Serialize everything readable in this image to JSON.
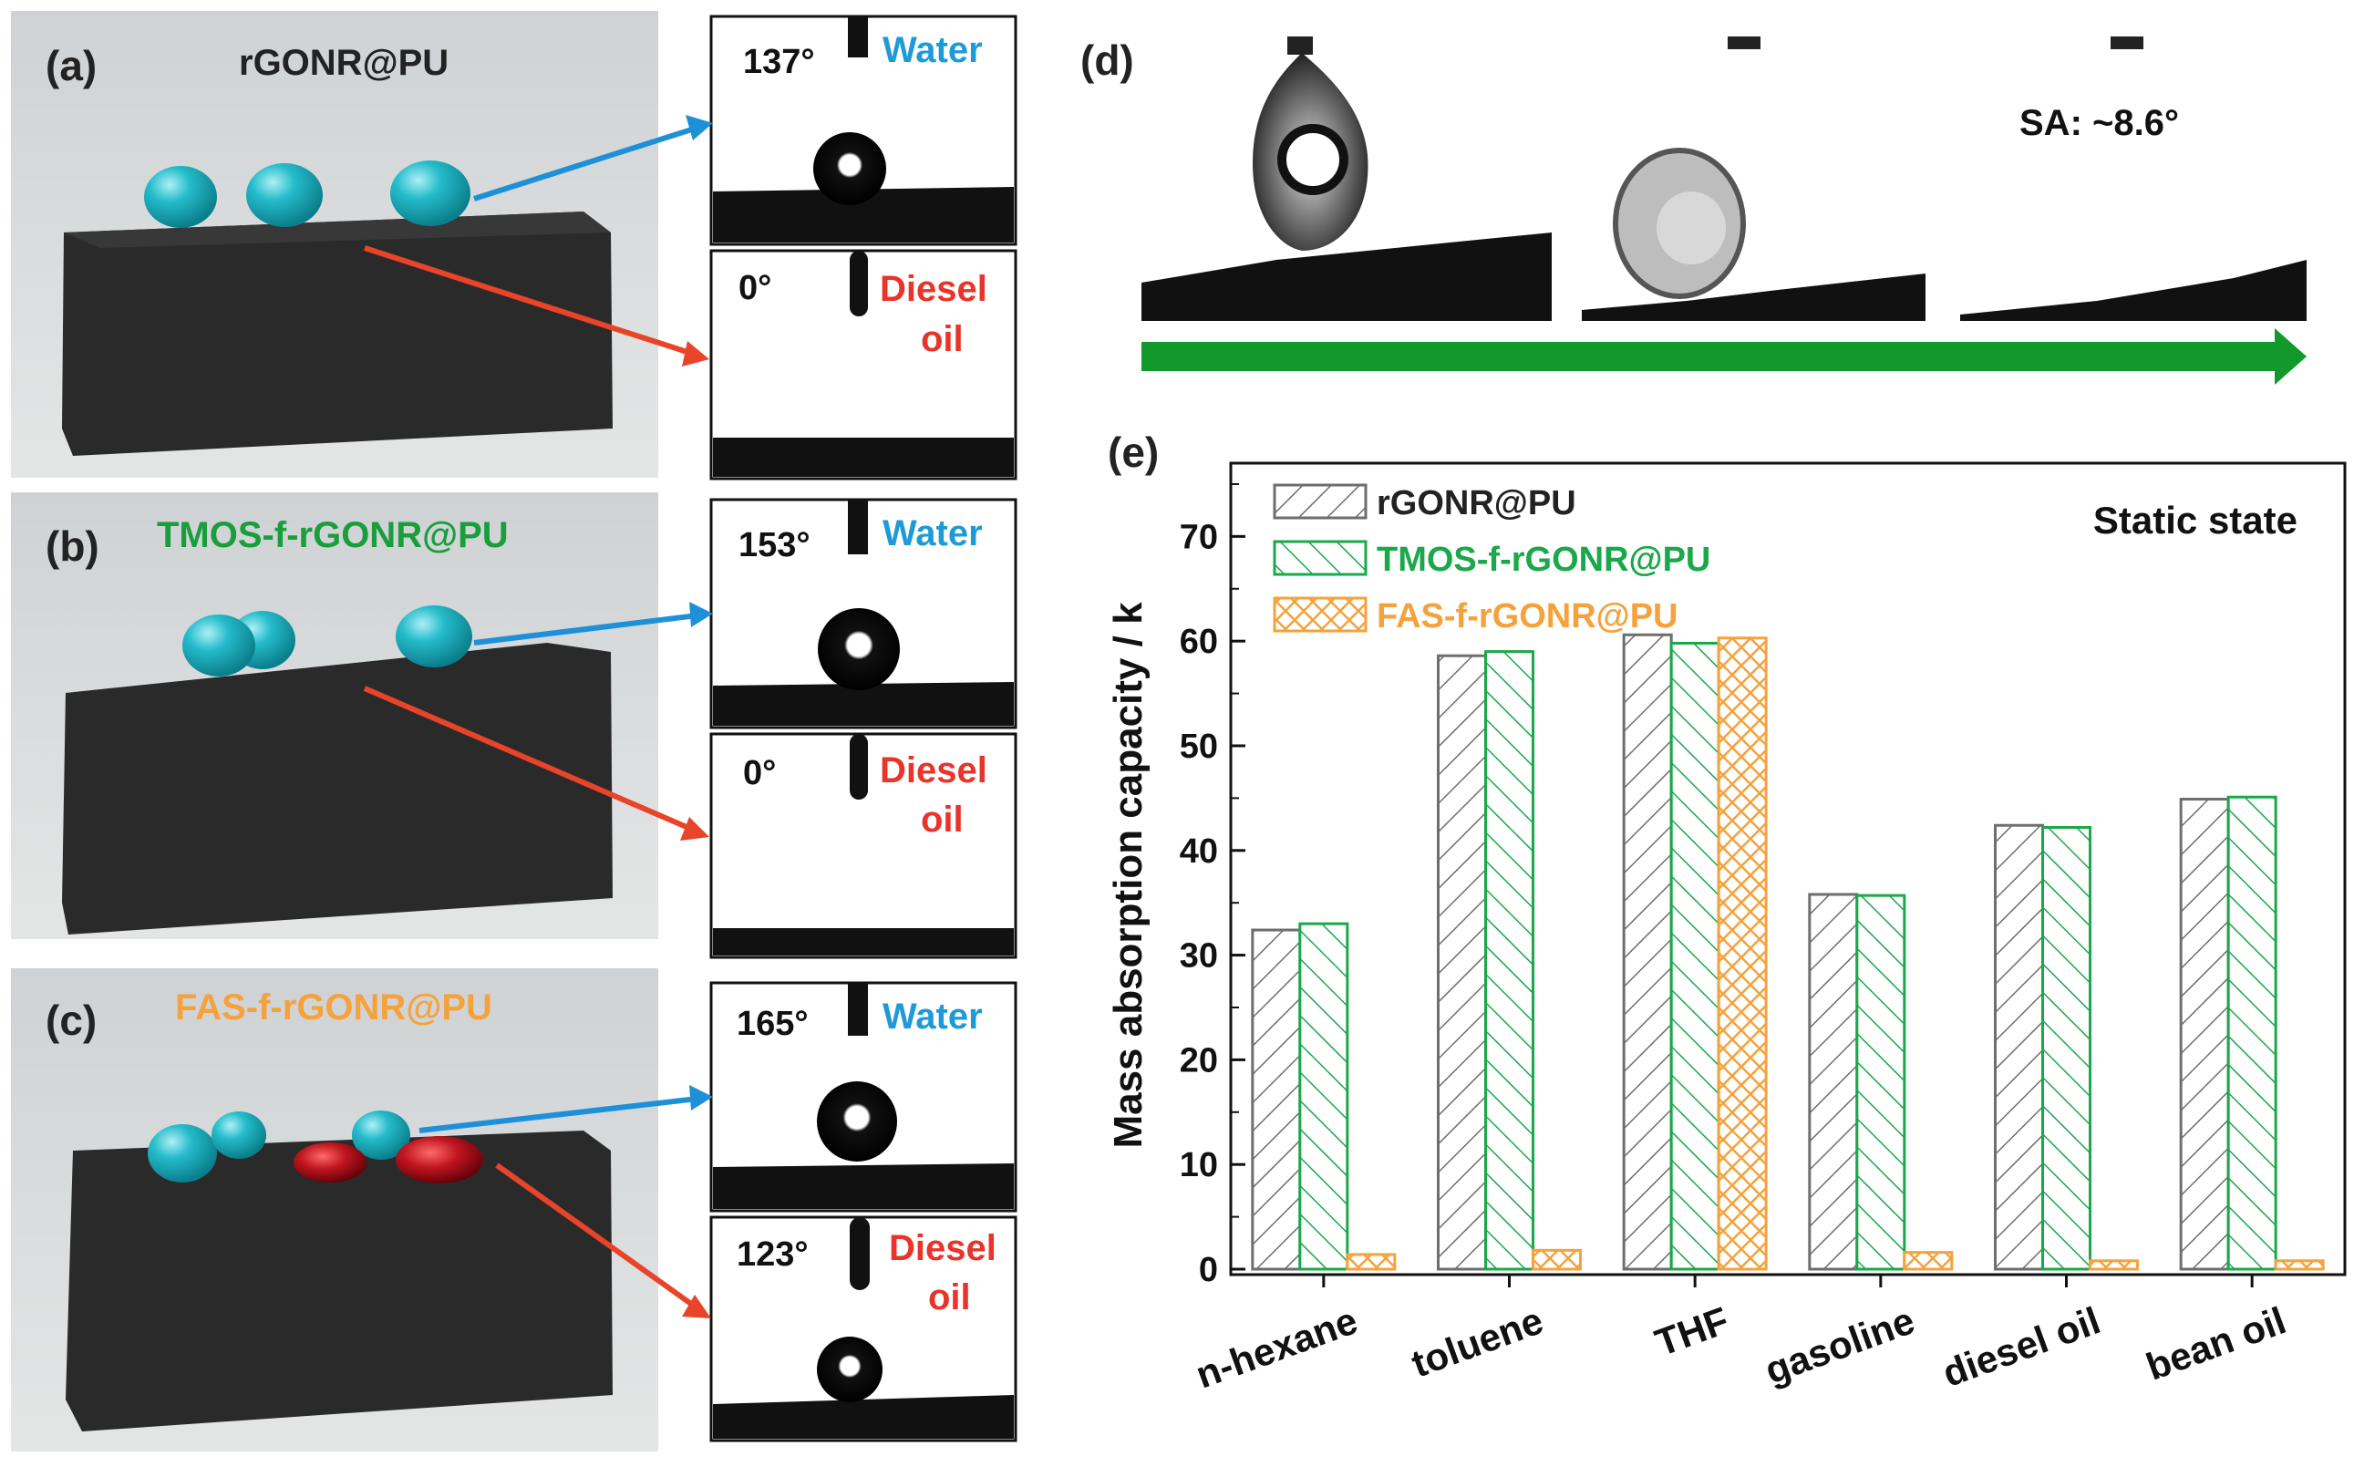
{
  "panels": {
    "a": {
      "label": "(a)",
      "sample": "rGONR@PU",
      "water_angle": "137°",
      "oil_angle": "0°"
    },
    "b": {
      "label": "(b)",
      "sample": "TMOS-f-rGONR@PU",
      "water_angle": "153°",
      "oil_angle": "0°"
    },
    "c": {
      "label": "(c)",
      "sample": "FAS-f-rGONR@PU",
      "water_angle": "165°",
      "oil_angle": "123°"
    },
    "d": {
      "label": "(d)",
      "sliding_angle": "SA: ~8.6°"
    },
    "e": {
      "label": "(e)",
      "state": "Static state"
    }
  },
  "liquids": {
    "water": "Water",
    "diesel_line1": "Diesel",
    "diesel_line2": "oil"
  },
  "colors": {
    "sample_a": "#222222",
    "sample_b": "#1a9e3c",
    "sample_c": "#f5a23d",
    "water_text": "#1e9bd7",
    "diesel_text": "#e8342a",
    "arrow_blue": "#1e90d8",
    "arrow_red": "#e8442a",
    "green_arrow": "#119a2b",
    "series_gray": "#6e6e6e",
    "series_green": "#1aa84a",
    "series_orange": "#f5a23d",
    "water_drop": "#17b3c3",
    "oil_drop": "#c0151f",
    "sponge": "#2a2a2a"
  },
  "chart_data": {
    "type": "bar",
    "categories": [
      "n-hexane",
      "toluene",
      "THF",
      "gasoline",
      "diesel oil",
      "bean oil"
    ],
    "series": [
      {
        "name": "rGONR@PU",
        "values": [
          32.4,
          58.6,
          60.6,
          35.8,
          42.4,
          44.9
        ]
      },
      {
        "name": "TMOS-f-rGONR@PU",
        "values": [
          33.0,
          59.0,
          59.8,
          35.7,
          42.2,
          45.1
        ]
      },
      {
        "name": "FAS-f-rGONR@PU",
        "values": [
          1.4,
          1.8,
          60.3,
          1.6,
          0.8,
          0.8
        ]
      }
    ],
    "title": "",
    "xlabel": "",
    "ylabel": "Mass absorption capacity / k",
    "ylim": [
      0,
      77
    ],
    "yticks": [
      0,
      10,
      20,
      30,
      40,
      50,
      60,
      70
    ],
    "legend_position": "top-left",
    "annotation": "Static state",
    "grid": false
  }
}
